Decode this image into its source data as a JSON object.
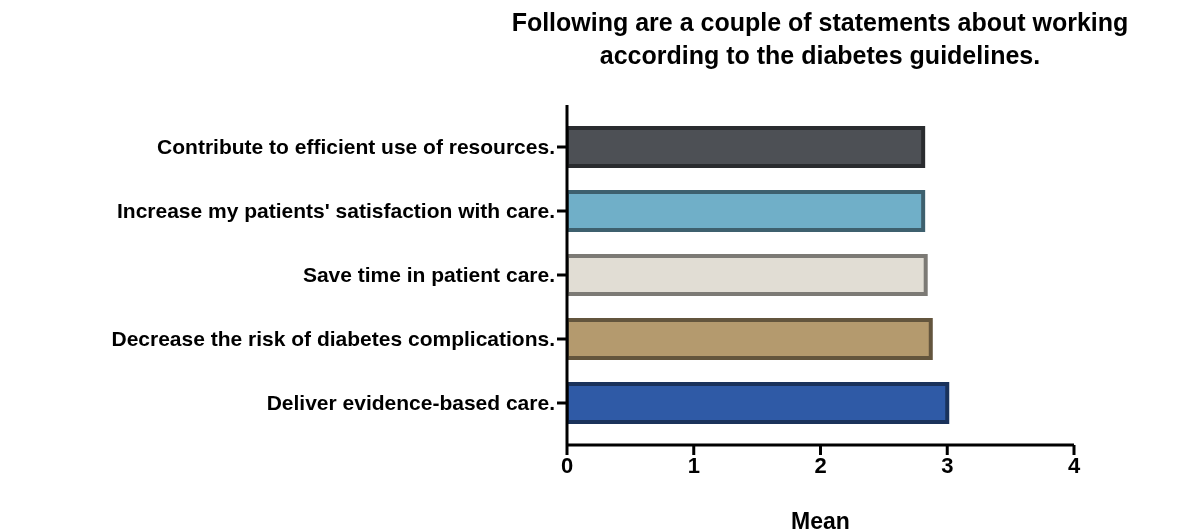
{
  "chart_data": {
    "type": "bar",
    "orientation": "horizontal",
    "title": "Following are a couple of statements about working according to the diabetes guidelines.",
    "xlabel": "Mean",
    "categories": [
      "Contribute to efficient use of resources.",
      "Increase my patients' satisfaction with care.",
      "Save time in patient care.",
      "Decrease the risk of diabetes complications.",
      "Deliver evidence-based care."
    ],
    "values": [
      2.81,
      2.81,
      2.83,
      2.87,
      3.0
    ],
    "colors": [
      "#4d5055",
      "#70afc8",
      "#e1ddd4",
      "#b49a6e",
      "#2f5aa6"
    ],
    "xlim": [
      0,
      4
    ],
    "xticks": [
      0,
      1,
      2,
      3,
      4
    ],
    "grid": false,
    "legend": false
  }
}
